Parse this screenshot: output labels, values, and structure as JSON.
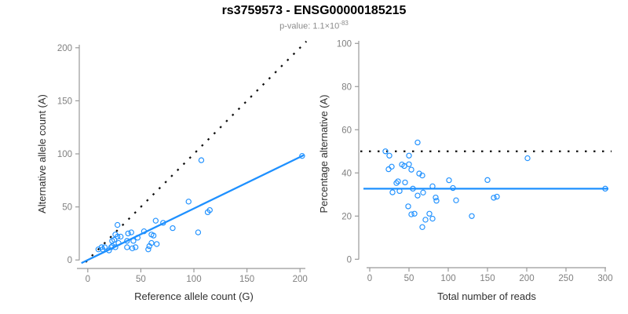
{
  "header": {
    "title": "rs3759573 - ENSG00000185215",
    "subtitle_prefix": "p-value: 1.1×10",
    "subtitle_exponent": "-83"
  },
  "colors": {
    "blue": "#1E90FF",
    "dotted_black": "#111111",
    "axis_line": "#999999",
    "tick_label": "#808080",
    "axis_title": "#303030",
    "title": "#000000",
    "subtitle": "#8b8b8b"
  },
  "chart_data": [
    {
      "id": "allele-count-scatter",
      "type": "scatter",
      "xlabel": "Reference allele count (G)",
      "ylabel": "Alternative allele count (A)",
      "xlim": [
        -8,
        208
      ],
      "ylim": [
        -8,
        208
      ],
      "xticks": [
        0,
        50,
        100,
        150,
        200
      ],
      "yticks": [
        0,
        50,
        100,
        150,
        200
      ],
      "grid": false,
      "legend": null,
      "points": [
        [
          10,
          10
        ],
        [
          13,
          12
        ],
        [
          14,
          10
        ],
        [
          16,
          12
        ],
        [
          20,
          9
        ],
        [
          22,
          12
        ],
        [
          23,
          13
        ],
        [
          23,
          18
        ],
        [
          25,
          19
        ],
        [
          26,
          12
        ],
        [
          29,
          16
        ],
        [
          28,
          22
        ],
        [
          26,
          24
        ],
        [
          31,
          22
        ],
        [
          37,
          18
        ],
        [
          28,
          33
        ],
        [
          43,
          18
        ],
        [
          47,
          21
        ],
        [
          38,
          25
        ],
        [
          41,
          26
        ],
        [
          37,
          12
        ],
        [
          42,
          11
        ],
        [
          45,
          12
        ],
        [
          57,
          10
        ],
        [
          58,
          13
        ],
        [
          65,
          15
        ],
        [
          60,
          16
        ],
        [
          53,
          27
        ],
        [
          60,
          24
        ],
        [
          62,
          23
        ],
        [
          64,
          37
        ],
        [
          71,
          35
        ],
        [
          80,
          30
        ],
        [
          104,
          26
        ],
        [
          95,
          55
        ],
        [
          113,
          45
        ],
        [
          115,
          47
        ],
        [
          107,
          94
        ],
        [
          202,
          98
        ]
      ],
      "lines": [
        {
          "name": "identity-line",
          "style": "dotted",
          "color": "dotted_black",
          "x1": -2,
          "y1": -2,
          "x2": 206,
          "y2": 206
        },
        {
          "name": "fit-line",
          "style": "solid",
          "color": "blue",
          "x1": -6,
          "y1": -2.91,
          "x2": 203.5,
          "y2": 98.73
        }
      ]
    },
    {
      "id": "percentage-scatter",
      "type": "scatter",
      "xlabel": "Total number of reads",
      "ylabel": "Percentage alternative (A)",
      "xlim": [
        -14,
        312
      ],
      "ylim": [
        -3.9,
        104.1
      ],
      "xticks": [
        0,
        50,
        100,
        150,
        200,
        250,
        300
      ],
      "yticks": [
        0,
        20,
        40,
        60,
        80,
        100
      ],
      "grid": false,
      "legend": null,
      "points": [
        [
          20,
          50.0
        ],
        [
          25,
          48.0
        ],
        [
          24,
          41.7
        ],
        [
          28,
          42.9
        ],
        [
          29,
          31.0
        ],
        [
          34,
          35.3
        ],
        [
          36,
          36.1
        ],
        [
          41,
          43.9
        ],
        [
          44,
          43.2
        ],
        [
          38,
          31.6
        ],
        [
          45,
          35.6
        ],
        [
          50,
          44.0
        ],
        [
          50,
          48.0
        ],
        [
          53,
          41.5
        ],
        [
          55,
          32.7
        ],
        [
          61,
          54.1
        ],
        [
          61,
          29.5
        ],
        [
          68,
          30.9
        ],
        [
          63,
          39.7
        ],
        [
          67,
          38.8
        ],
        [
          49,
          24.5
        ],
        [
          53,
          20.8
        ],
        [
          57,
          21.1
        ],
        [
          67,
          14.9
        ],
        [
          71,
          18.3
        ],
        [
          80,
          18.8
        ],
        [
          76,
          21.1
        ],
        [
          80,
          33.8
        ],
        [
          84,
          28.6
        ],
        [
          85,
          27.1
        ],
        [
          101,
          36.6
        ],
        [
          106,
          33.0
        ],
        [
          110,
          27.3
        ],
        [
          130,
          20.0
        ],
        [
          150,
          36.7
        ],
        [
          158,
          28.5
        ],
        [
          162,
          29.0
        ],
        [
          201,
          46.8
        ],
        [
          300,
          32.7
        ]
      ],
      "lines": [
        {
          "name": "fifty-percent-line",
          "style": "dotted",
          "color": "dotted_black",
          "x1": -12,
          "y1": 50,
          "x2": 308,
          "y2": 50
        },
        {
          "name": "mean-percentage-line",
          "style": "solid",
          "color": "blue",
          "x1": -8,
          "y1": 32.7,
          "x2": 304,
          "y2": 32.7
        }
      ]
    }
  ]
}
